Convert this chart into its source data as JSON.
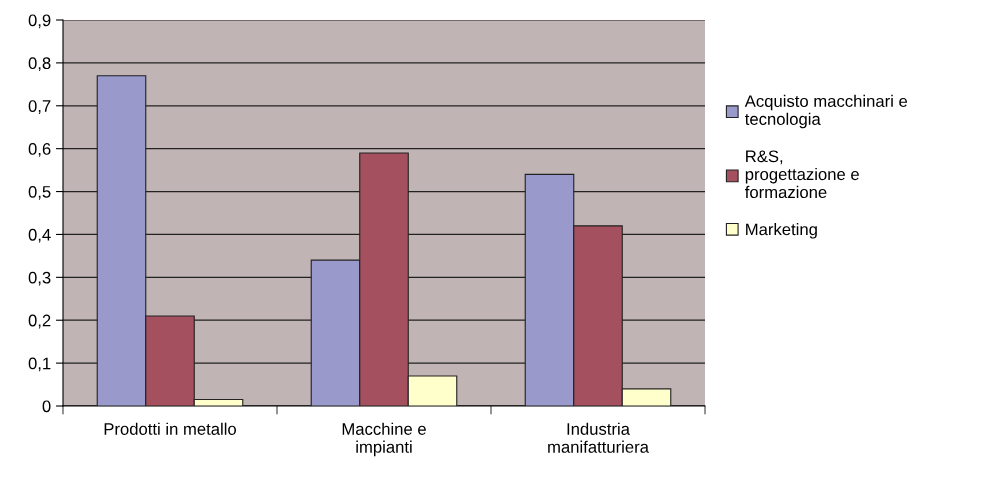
{
  "chart_data": {
    "type": "bar",
    "categories": [
      "Prodotti in metallo",
      "Macchine e\nimpianti",
      "Industria\nmanifatturiera"
    ],
    "series": [
      {
        "name": "Acquisto macchinari e\ntecnologia",
        "color": "#9999cc",
        "values": [
          0.77,
          0.34,
          0.54
        ]
      },
      {
        "name": "R&S,\nprogettazione e\nformazione",
        "color": "#a5505e",
        "values": [
          0.21,
          0.59,
          0.42
        ]
      },
      {
        "name": "Marketing",
        "color": "#ffffcc",
        "values": [
          0.015,
          0.07,
          0.04
        ]
      }
    ],
    "ylim": [
      0,
      0.9
    ],
    "yticks": [
      0,
      {
        "value": 0.1,
        "label": "0,1"
      },
      {
        "value": 0.2,
        "label": "0,2"
      },
      {
        "value": 0.3,
        "label": "0,3"
      },
      {
        "value": 0.4,
        "label": "0,4"
      },
      {
        "value": 0.5,
        "label": "0,5"
      },
      {
        "value": 0.6,
        "label": "0,6"
      },
      {
        "value": 0.7,
        "label": "0,7"
      },
      {
        "value": 0.8,
        "label": "0,8"
      },
      {
        "value": 0.9,
        "label": "0,9"
      }
    ],
    "grid": "y",
    "legend": "right"
  }
}
